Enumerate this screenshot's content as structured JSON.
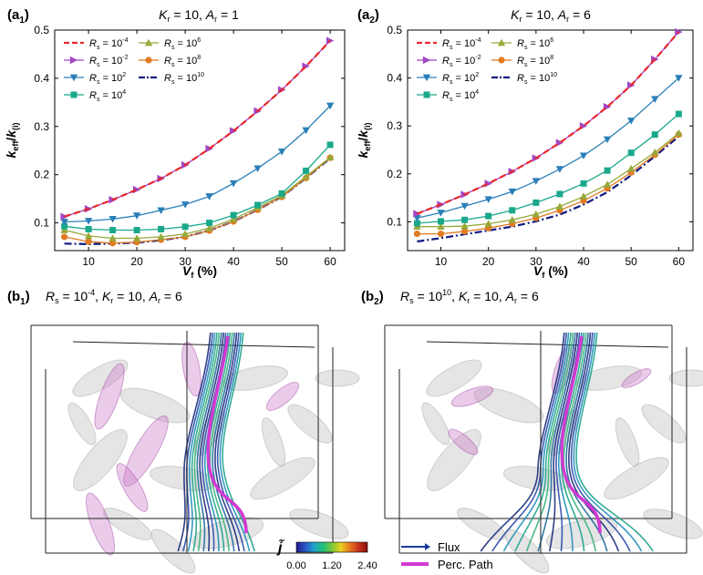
{
  "chart_data": [
    {
      "type": "line",
      "panel": "(a1)",
      "panel_letter": "(a",
      "panel_sub": "1",
      "panel_close": ")",
      "title": "K_r = 10, A_r = 1",
      "title_parts": {
        "k": "K",
        "ksub": "r",
        "kval": " = 10, ",
        "a": "A",
        "asub": "r",
        "aval": " = 1"
      },
      "xlabel": "V_f (%)",
      "ylabel": "k_eff/k_(i)",
      "xlim": [
        3,
        63
      ],
      "ylim": [
        0.0425,
        0.5
      ],
      "xticks": [
        10,
        20,
        30,
        40,
        50,
        60
      ],
      "yticks": [
        0.1,
        0.2,
        0.3,
        0.4,
        0.5
      ],
      "x": [
        5,
        10,
        15,
        20,
        25,
        30,
        35,
        40,
        45,
        50,
        55,
        60
      ],
      "series": [
        {
          "name": "Rs = 10^-4",
          "exp": "-4",
          "color": "#e8262a",
          "marker": "dash",
          "values": [
            0.113,
            0.129,
            0.148,
            0.169,
            0.192,
            0.22,
            0.254,
            0.291,
            0.332,
            0.376,
            0.425,
            0.478
          ]
        },
        {
          "name": "Rs = 10^-2",
          "exp": "-2",
          "color": "#a148c4",
          "marker": "tri-right",
          "values": [
            0.113,
            0.129,
            0.148,
            0.169,
            0.192,
            0.22,
            0.254,
            0.291,
            0.332,
            0.376,
            0.425,
            0.478
          ]
        },
        {
          "name": "Rs = 10^2",
          "exp": "2",
          "color": "#2a7fb8",
          "marker": "tri-down",
          "values": [
            0.102,
            0.104,
            0.108,
            0.115,
            0.126,
            0.138,
            0.155,
            0.182,
            0.213,
            0.248,
            0.292,
            0.343
          ]
        },
        {
          "name": "Rs = 10^4",
          "exp": "4",
          "color": "#1aa88a",
          "marker": "square",
          "values": [
            0.093,
            0.087,
            0.085,
            0.085,
            0.087,
            0.092,
            0.1,
            0.116,
            0.137,
            0.161,
            0.208,
            0.262
          ]
        },
        {
          "name": "Rs = 10^6",
          "exp": "6",
          "color": "#98a83a",
          "marker": "tri-up",
          "values": [
            0.085,
            0.073,
            0.068,
            0.068,
            0.071,
            0.077,
            0.089,
            0.108,
            0.132,
            0.157,
            0.196,
            0.236
          ]
        },
        {
          "name": "Rs = 10^8",
          "exp": "8",
          "color": "#e07b22",
          "marker": "circle",
          "values": [
            0.071,
            0.061,
            0.058,
            0.06,
            0.065,
            0.071,
            0.084,
            0.103,
            0.127,
            0.154,
            0.193,
            0.235
          ]
        },
        {
          "name": "Rs = 10^10",
          "exp": "10",
          "color": "#101a80",
          "marker": "dashdot",
          "values": [
            0.057,
            0.056,
            0.057,
            0.059,
            0.064,
            0.071,
            0.084,
            0.103,
            0.127,
            0.154,
            0.193,
            0.234
          ]
        }
      ]
    },
    {
      "type": "line",
      "panel": "(a2)",
      "panel_letter": "(a",
      "panel_sub": "2",
      "panel_close": ")",
      "title": "K_r = 10, A_r = 6",
      "title_parts": {
        "k": "K",
        "ksub": "r",
        "kval": " = 10, ",
        "a": "A",
        "asub": "r",
        "aval": " = 6"
      },
      "xlabel": "V_f (%)",
      "ylabel": "k_eff/k_(i)",
      "xlim": [
        3,
        63
      ],
      "ylim": [
        0.04,
        0.5
      ],
      "xticks": [
        10,
        20,
        30,
        40,
        50,
        60
      ],
      "yticks": [
        0.1,
        0.2,
        0.3,
        0.4,
        0.5
      ],
      "x": [
        5,
        10,
        15,
        20,
        25,
        30,
        35,
        40,
        45,
        50,
        55,
        60
      ],
      "series": [
        {
          "name": "Rs = 10^-4",
          "exp": "-4",
          "color": "#e8262a",
          "marker": "dash",
          "values": [
            0.117,
            0.136,
            0.157,
            0.18,
            0.205,
            0.233,
            0.265,
            0.3,
            0.34,
            0.385,
            0.439,
            0.496
          ]
        },
        {
          "name": "Rs = 10^-2",
          "exp": "-2",
          "color": "#a148c4",
          "marker": "tri-right",
          "values": [
            0.117,
            0.136,
            0.157,
            0.18,
            0.205,
            0.233,
            0.265,
            0.3,
            0.34,
            0.385,
            0.439,
            0.496
          ]
        },
        {
          "name": "Rs = 10^2",
          "exp": "2",
          "color": "#2a7fb8",
          "marker": "tri-down",
          "values": [
            0.108,
            0.119,
            0.133,
            0.147,
            0.163,
            0.185,
            0.21,
            0.238,
            0.272,
            0.311,
            0.356,
            0.4
          ]
        },
        {
          "name": "Rs = 10^4",
          "exp": "4",
          "color": "#1aa88a",
          "marker": "square",
          "values": [
            0.097,
            0.101,
            0.104,
            0.112,
            0.124,
            0.14,
            0.158,
            0.18,
            0.207,
            0.244,
            0.282,
            0.325
          ]
        },
        {
          "name": "Rs = 10^6",
          "exp": "6",
          "color": "#98a83a",
          "marker": "tri-up",
          "values": [
            0.09,
            0.09,
            0.091,
            0.096,
            0.104,
            0.116,
            0.132,
            0.153,
            0.178,
            0.211,
            0.245,
            0.285
          ]
        },
        {
          "name": "Rs = 10^8",
          "exp": "8",
          "color": "#e07b22",
          "marker": "circle",
          "values": [
            0.075,
            0.075,
            0.08,
            0.087,
            0.096,
            0.108,
            0.124,
            0.144,
            0.17,
            0.203,
            0.24,
            0.282
          ]
        },
        {
          "name": "Rs = 10^10",
          "exp": "10",
          "color": "#101a80",
          "marker": "dashdot",
          "values": [
            0.059,
            0.066,
            0.074,
            0.082,
            0.09,
            0.101,
            0.115,
            0.136,
            0.162,
            0.197,
            0.237,
            0.278
          ]
        }
      ]
    }
  ],
  "bottom": {
    "b1": {
      "panel_letter": "(b",
      "panel_sub": "1",
      "panel_close": ")",
      "rs_exp": "-4",
      "ar": "6",
      "kr": "10"
    },
    "b2": {
      "panel_letter": "(b",
      "panel_sub": "2",
      "panel_close": ")",
      "rs_exp": "10",
      "ar": "6",
      "kr": "10"
    },
    "colorbar": {
      "symbol": "j̃",
      "ticks": [
        "0.00",
        "1.20",
        "2.40"
      ],
      "colors": [
        "#1f1a8c",
        "#2a54c8",
        "#1fa3c8",
        "#1fc07a",
        "#7ac83a",
        "#e8d21f",
        "#e87a1f",
        "#c8321f",
        "#8c1010"
      ]
    },
    "legend": {
      "flux": "Flux",
      "perc": "Perc. Path",
      "flux_color": "#1a3a9c",
      "perc_color": "#d23ad2"
    }
  }
}
